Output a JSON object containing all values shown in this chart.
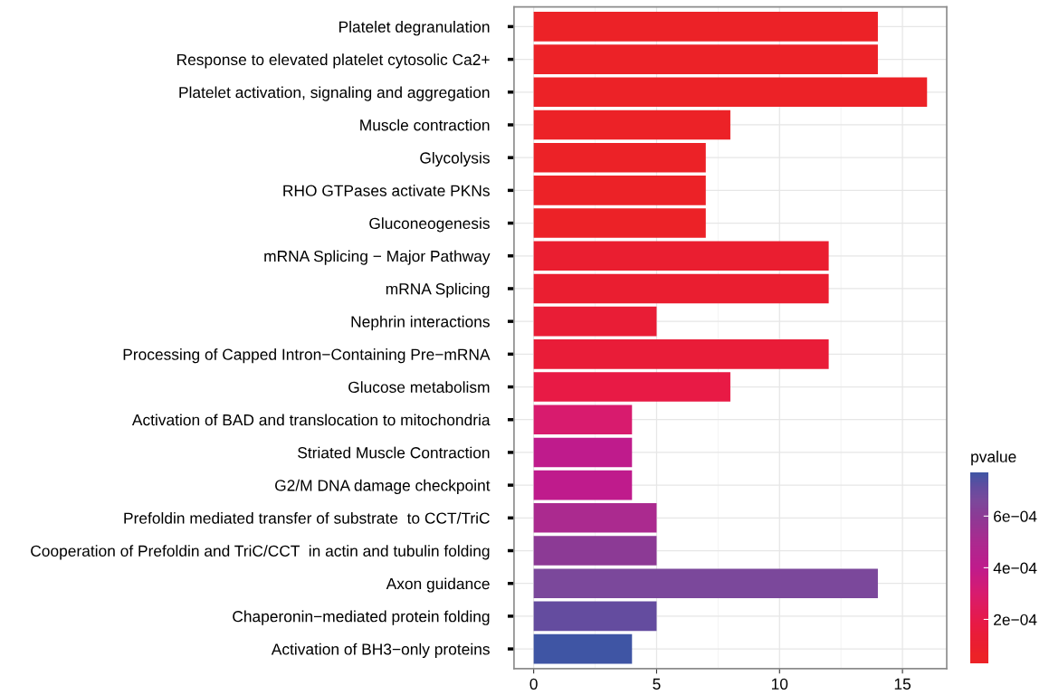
{
  "chart_data": {
    "type": "bar",
    "orientation": "horizontal",
    "categories": [
      "Platelet degranulation",
      "Response to elevated platelet cytosolic Ca2+",
      "Platelet activation, signaling and aggregation",
      "Muscle contraction",
      "Glycolysis",
      "RHO GTPases activate PKNs",
      "Gluconeogenesis",
      "mRNA Splicing − Major Pathway",
      "mRNA Splicing",
      "Nephrin interactions",
      "Processing of Capped Intron−Containing Pre−mRNA",
      "Glucose metabolism",
      "Activation of BAD and translocation to mitochondria",
      "Striated Muscle Contraction",
      "G2/M DNA damage checkpoint",
      "Prefoldin mediated transfer of substrate  to CCT/TriC",
      "Cooperation of Prefoldin and TriC/CCT  in actin and tubulin folding",
      "Axon guidance",
      "Chaperonin−mediated protein folding",
      "Activation of BH3−only proteins"
    ],
    "values": [
      14,
      14,
      16,
      8,
      7,
      7,
      7,
      12,
      12,
      5,
      12,
      8,
      4,
      4,
      4,
      5,
      5,
      14,
      5,
      4
    ],
    "cvalues": [
      4e-05,
      4e-05,
      4e-05,
      5e-05,
      5e-05,
      5e-05,
      6e-05,
      0.0001,
      0.0001,
      0.00013,
      0.00014,
      0.00018,
      0.0003,
      0.0004,
      0.0004,
      0.0005,
      0.0006,
      0.00066,
      0.00071,
      0.00077
    ],
    "colors": [
      "#ec2227",
      "#ec2227",
      "#ec2227",
      "#ec2227",
      "#ec2227",
      "#ec2227",
      "#ec2227",
      "#ea1e30",
      "#ea1e30",
      "#e91d36",
      "#e91c38",
      "#e81a45",
      "#d81b6e",
      "#bf1b8c",
      "#bf1b8c",
      "#ab2a8f",
      "#8c3a95",
      "#7b489b",
      "#644c9f",
      "#3f55a4"
    ],
    "xlim": [
      -0.8,
      16.8
    ],
    "xticks": [
      0,
      5,
      10,
      15
    ],
    "clabel": "pvalue",
    "clim": [
      3e-05,
      0.00077
    ],
    "cticks": [
      {
        "value": 0.0002,
        "label": "2e−04"
      },
      {
        "value": 0.0004,
        "label": "4e−04"
      },
      {
        "value": 0.0006,
        "label": "6e−04"
      }
    ],
    "grid": true
  }
}
